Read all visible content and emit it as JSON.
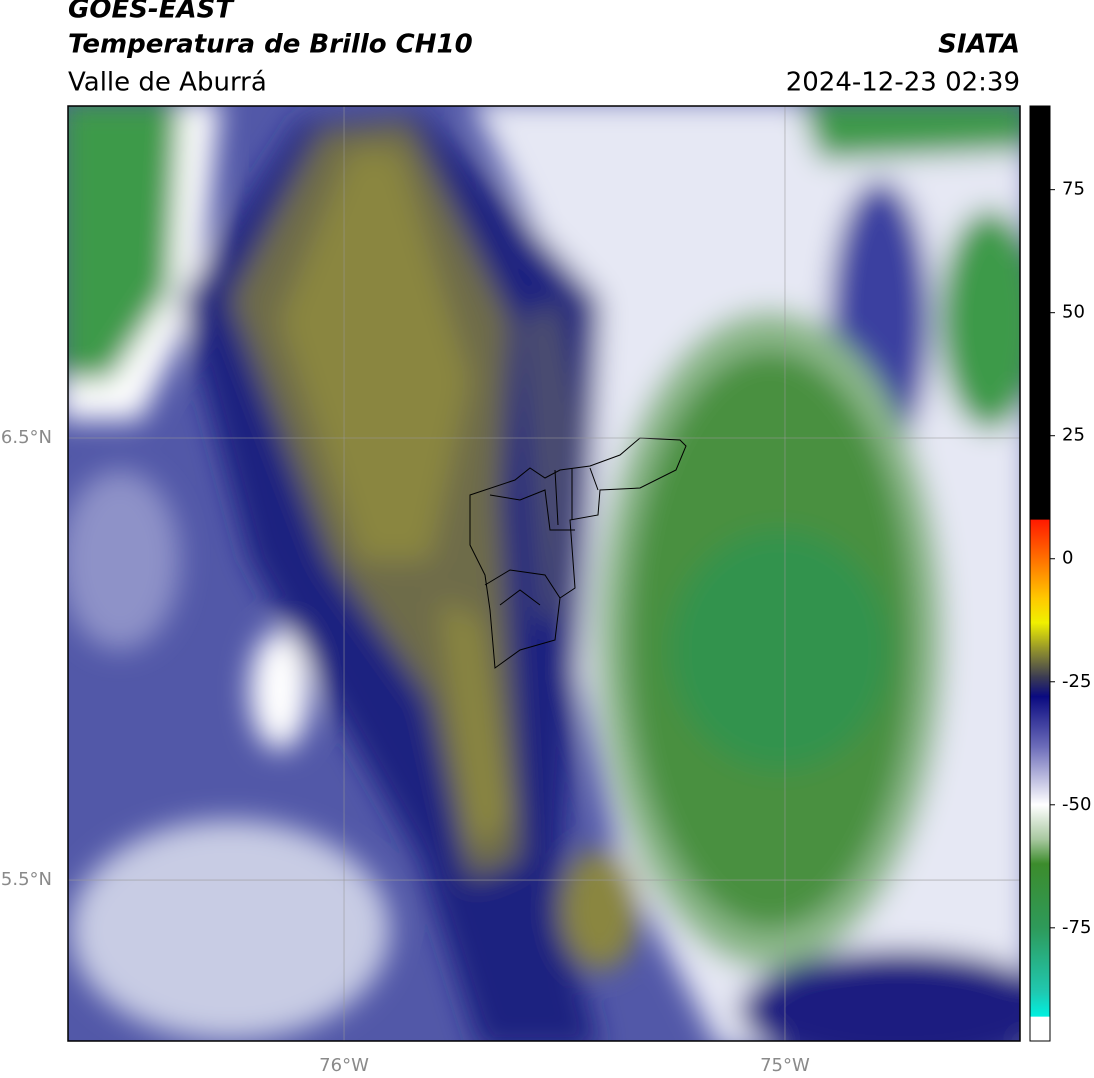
{
  "header": {
    "source": "GOES-EAST",
    "title": "Temperatura de Brillo CH10",
    "region": "Valle de Aburrá",
    "agency": "SIATA",
    "datetime": "2024-12-23 02:39"
  },
  "map": {
    "lat_range": [
      5.136,
      7.251
    ],
    "lon_range": [
      -76.626,
      -74.467
    ],
    "lat_ticks": [
      {
        "value": 6.5,
        "label": "6.5°N"
      },
      {
        "value": 5.5,
        "label": "5.5°N"
      }
    ],
    "lon_ticks": [
      {
        "value": -76,
        "label": "76°W"
      },
      {
        "value": -75,
        "label": "75°W"
      }
    ],
    "grid": true
  },
  "colorbar": {
    "range": [
      -98,
      92
    ],
    "ticks": [
      75,
      50,
      25,
      0,
      -25,
      -50,
      -75
    ],
    "colormap": [
      {
        "value": 92,
        "color": "#000000"
      },
      {
        "value": 8,
        "color": "#000000"
      },
      {
        "value": 7.9,
        "color": "#ff1a00"
      },
      {
        "value": 0,
        "color": "#ff7000"
      },
      {
        "value": -8,
        "color": "#ffc800"
      },
      {
        "value": -13,
        "color": "#f0f000"
      },
      {
        "value": -19,
        "color": "#8a8a30"
      },
      {
        "value": -24,
        "color": "#3c3c52"
      },
      {
        "value": -28,
        "color": "#0a0a80"
      },
      {
        "value": -38,
        "color": "#6a6ab8"
      },
      {
        "value": -50,
        "color": "#ffffff"
      },
      {
        "value": -57,
        "color": "#a8c8a0"
      },
      {
        "value": -62,
        "color": "#3c8c2c"
      },
      {
        "value": -75,
        "color": "#2e9a5a"
      },
      {
        "value": -88,
        "color": "#20c8b0"
      },
      {
        "value": -93,
        "color": "#00f0e0"
      },
      {
        "value": -93.1,
        "color": "#ffffff"
      },
      {
        "value": -98,
        "color": "#ffffff"
      }
    ]
  }
}
